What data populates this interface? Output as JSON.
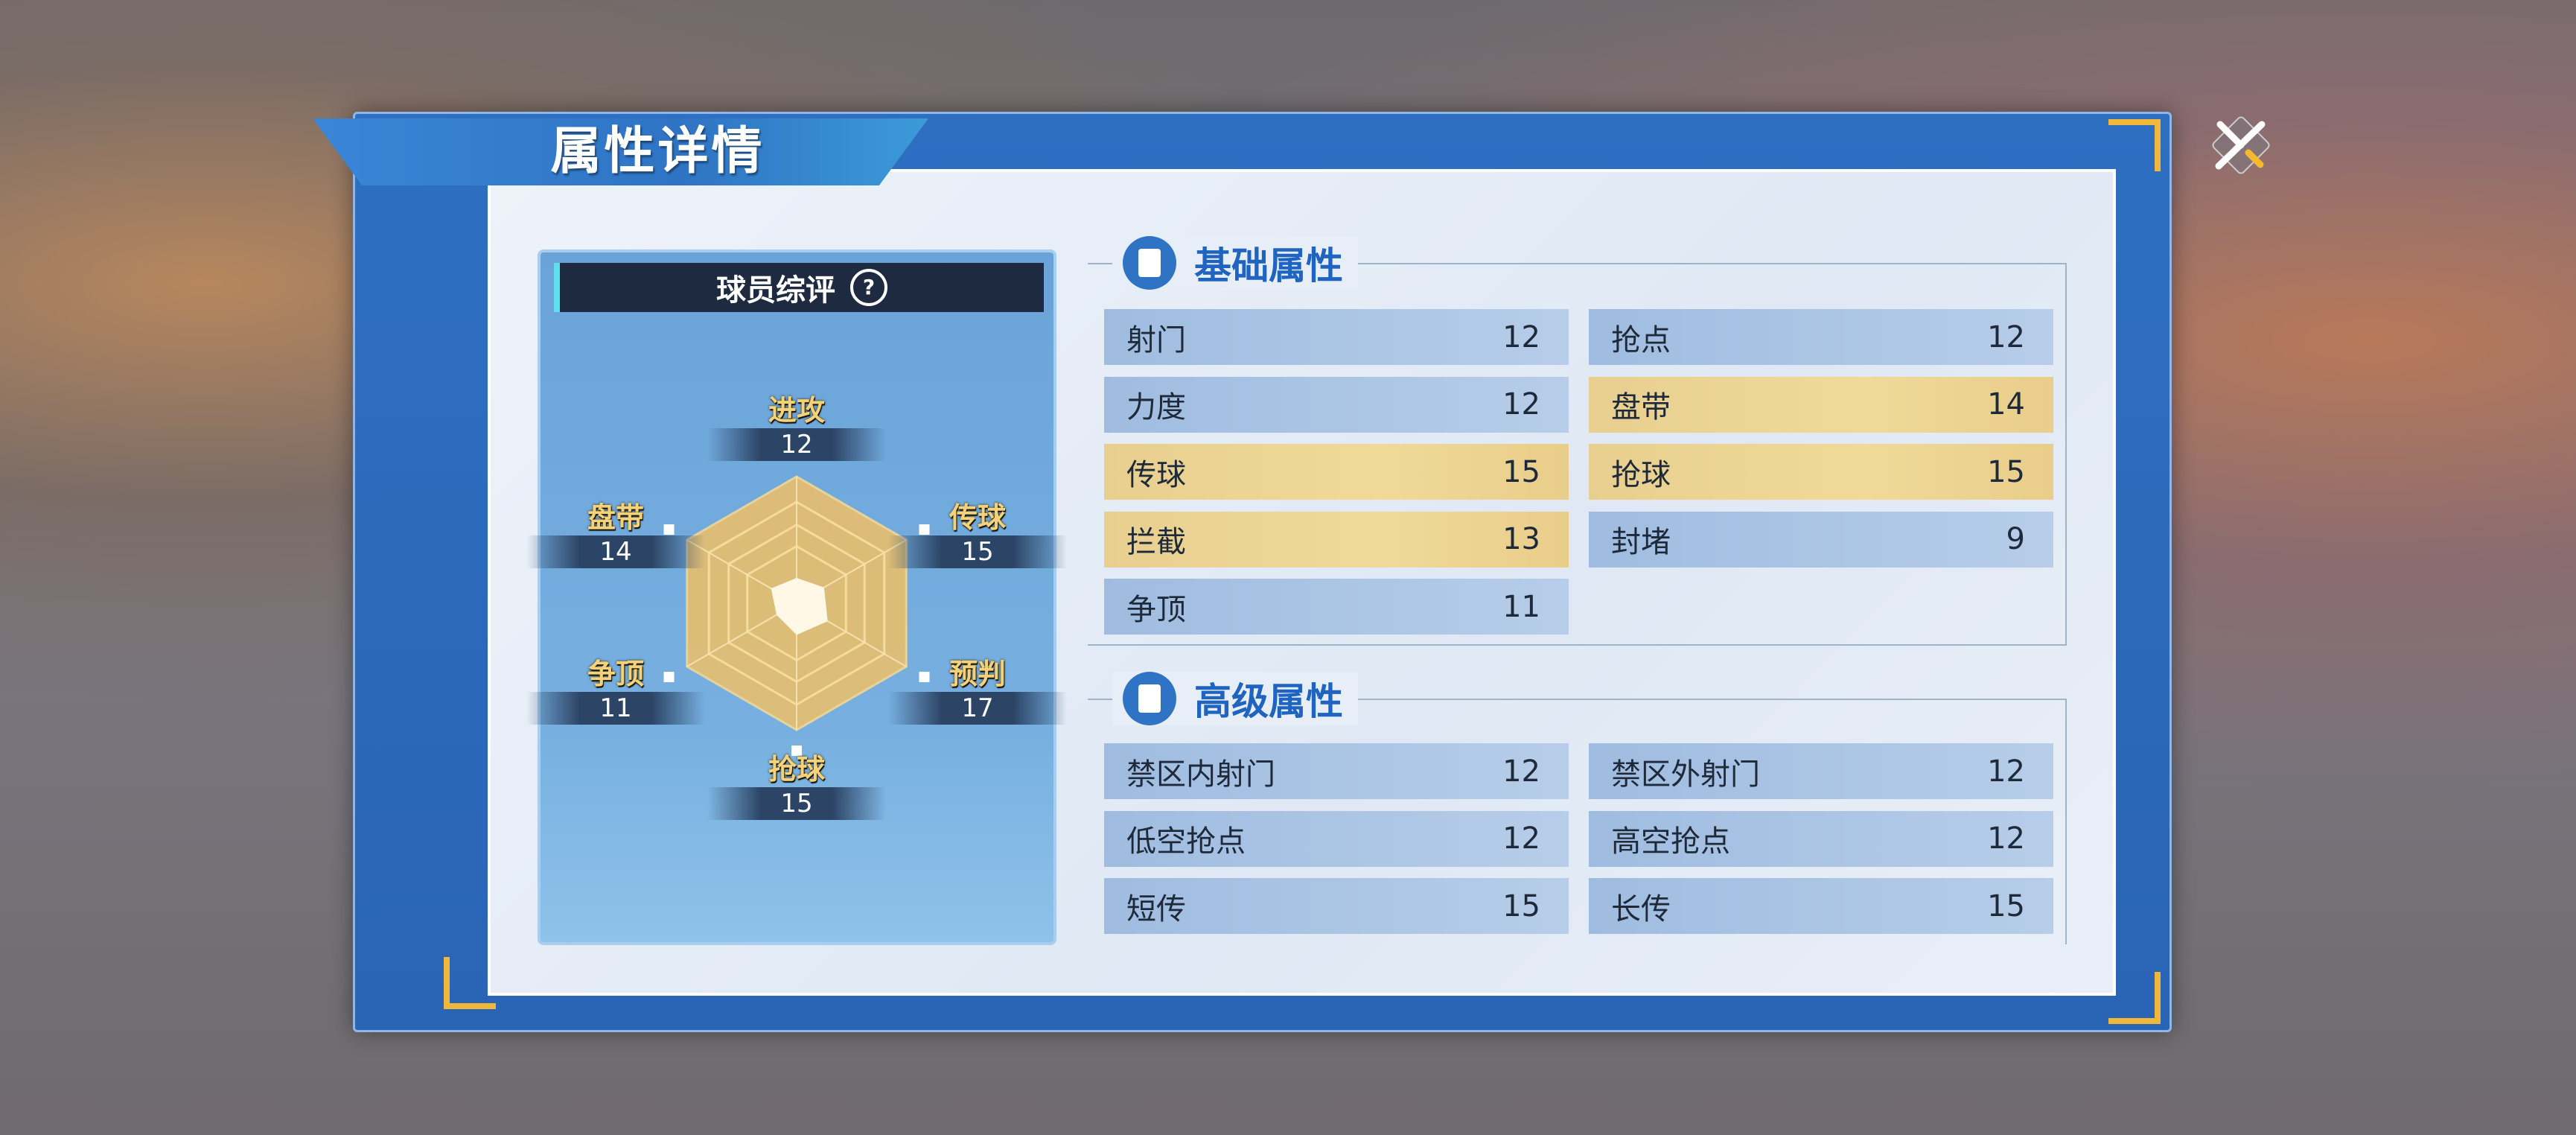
{
  "title": "属性详情",
  "colors": {
    "accent": "#2f74c4",
    "highlight": "#f0d999",
    "gold": "#f1b73a"
  },
  "icons": {
    "close": "close-x-icon",
    "section": "clipboard-icon",
    "help": "question-icon"
  },
  "rating_card": {
    "title": "球员综评",
    "help_label": "?"
  },
  "chart_data": {
    "type": "radar",
    "axes": [
      "进攻",
      "传球",
      "预判",
      "抢球",
      "争顶",
      "盘带"
    ],
    "values": [
      12,
      15,
      17,
      15,
      11,
      14
    ]
  },
  "basic": {
    "title": "基础属性",
    "items": [
      {
        "label": "射门",
        "value": "12",
        "highlight": false
      },
      {
        "label": "抢点",
        "value": "12",
        "highlight": false
      },
      {
        "label": "力度",
        "value": "12",
        "highlight": false
      },
      {
        "label": "盘带",
        "value": "14",
        "highlight": true
      },
      {
        "label": "传球",
        "value": "15",
        "highlight": true
      },
      {
        "label": "抢球",
        "value": "15",
        "highlight": true
      },
      {
        "label": "拦截",
        "value": "13",
        "highlight": true
      },
      {
        "label": "封堵",
        "value": "9",
        "highlight": false
      },
      {
        "label": "争顶",
        "value": "11",
        "highlight": false
      }
    ]
  },
  "advanced": {
    "title": "高级属性",
    "items": [
      {
        "label": "禁区内射门",
        "value": "12",
        "highlight": false
      },
      {
        "label": "禁区外射门",
        "value": "12",
        "highlight": false
      },
      {
        "label": "低空抢点",
        "value": "12",
        "highlight": false
      },
      {
        "label": "高空抢点",
        "value": "12",
        "highlight": false
      },
      {
        "label": "短传",
        "value": "15",
        "highlight": false
      },
      {
        "label": "长传",
        "value": "15",
        "highlight": false
      }
    ]
  }
}
